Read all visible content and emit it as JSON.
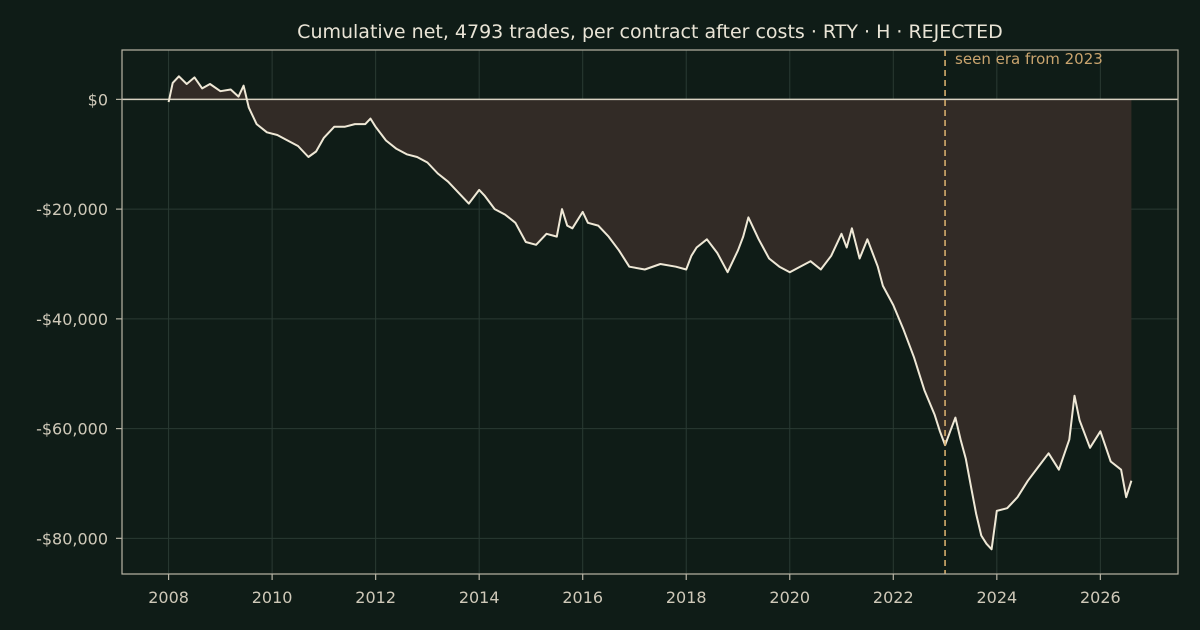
{
  "chart_data": {
    "type": "line",
    "title": "Cumulative net, 4793 trades, per contract after costs  ·  RTY · H · REJECTED",
    "xlabel": "",
    "ylabel": "",
    "xlim": [
      2007.1,
      2027.5
    ],
    "ylim": [
      -86500,
      9000
    ],
    "x_ticks": [
      2008,
      2010,
      2012,
      2014,
      2016,
      2018,
      2020,
      2022,
      2024,
      2026
    ],
    "y_ticks": [
      {
        "value": 0,
        "label": "$0"
      },
      {
        "value": -20000,
        "label": "-$20,000"
      },
      {
        "value": -40000,
        "label": "-$40,000"
      },
      {
        "value": -60000,
        "label": "-$60,000"
      },
      {
        "value": -80000,
        "label": "-$80,000"
      }
    ],
    "grid": true,
    "fill_to_zero": true,
    "annotation": {
      "x": 2023.0,
      "text": "seen era from 2023"
    },
    "series": [
      {
        "x": [
          2008.0,
          2008.08,
          2008.2,
          2008.35,
          2008.5,
          2008.65,
          2008.8,
          2009.0,
          2009.2,
          2009.35,
          2009.45,
          2009.55,
          2009.7,
          2009.9,
          2010.1,
          2010.3,
          2010.5,
          2010.7,
          2010.85,
          2011.0,
          2011.2,
          2011.4,
          2011.6,
          2011.8,
          2011.9,
          2012.0,
          2012.2,
          2012.4,
          2012.6,
          2012.8,
          2013.0,
          2013.2,
          2013.4,
          2013.6,
          2013.8,
          2014.0,
          2014.1,
          2014.3,
          2014.5,
          2014.7,
          2014.9,
          2015.1,
          2015.3,
          2015.5,
          2015.6,
          2015.7,
          2015.8,
          2016.0,
          2016.1,
          2016.3,
          2016.5,
          2016.7,
          2016.9,
          2017.2,
          2017.5,
          2017.8,
          2018.0,
          2018.1,
          2018.2,
          2018.4,
          2018.6,
          2018.8,
          2019.0,
          2019.1,
          2019.2,
          2019.4,
          2019.6,
          2019.8,
          2020.0,
          2020.2,
          2020.4,
          2020.6,
          2020.8,
          2021.0,
          2021.1,
          2021.2,
          2021.35,
          2021.5,
          2021.6,
          2021.7,
          2021.8,
          2022.0,
          2022.2,
          2022.4,
          2022.6,
          2022.8,
          2022.9,
          2023.0,
          2023.1,
          2023.2,
          2023.3,
          2023.4,
          2023.5,
          2023.6,
          2023.7,
          2023.8,
          2023.9,
          2024.0,
          2024.2,
          2024.4,
          2024.6,
          2024.8,
          2025.0,
          2025.2,
          2025.4,
          2025.5,
          2025.6,
          2025.8,
          2026.0,
          2026.2,
          2026.4,
          2026.5,
          2026.6
        ],
        "values": [
          -500,
          3000,
          4200,
          2800,
          4000,
          2000,
          2800,
          1500,
          1800,
          500,
          2500,
          -1500,
          -4500,
          -6000,
          -6500,
          -7500,
          -8500,
          -10500,
          -9500,
          -7000,
          -5000,
          -5000,
          -4500,
          -4500,
          -3500,
          -5000,
          -7500,
          -9000,
          -10000,
          -10500,
          -11500,
          -13500,
          -15000,
          -17000,
          -19000,
          -16500,
          -17500,
          -20000,
          -21000,
          -22500,
          -26000,
          -26500,
          -24500,
          -25000,
          -20000,
          -23000,
          -23500,
          -20500,
          -22500,
          -23000,
          -25000,
          -27500,
          -30500,
          -31000,
          -30000,
          -30500,
          -31000,
          -28500,
          -27000,
          -25500,
          -28000,
          -31500,
          -27500,
          -25000,
          -21500,
          -25500,
          -29000,
          -30500,
          -31500,
          -30500,
          -29500,
          -31000,
          -28500,
          -24500,
          -27000,
          -23500,
          -29000,
          -25500,
          -28000,
          -30500,
          -34000,
          -37500,
          -42000,
          -47000,
          -53000,
          -57500,
          -60500,
          -63000,
          -60500,
          -58000,
          -62000,
          -65500,
          -70500,
          -75500,
          -79500,
          -81000,
          -82000,
          -75000,
          -74500,
          -72500,
          -69500,
          -67000,
          -64500,
          -67500,
          -62000,
          -54000,
          -58500,
          -63500,
          -60500,
          -66000,
          -67500,
          -72500,
          -69500
        ]
      }
    ]
  }
}
